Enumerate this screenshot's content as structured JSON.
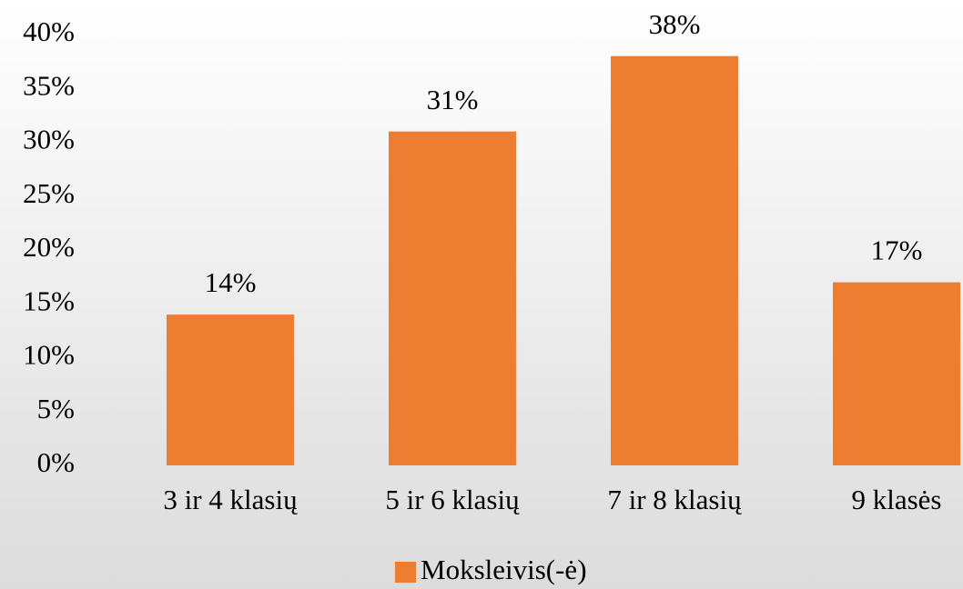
{
  "chart_data": {
    "type": "bar",
    "categories": [
      "3 ir 4 klasių",
      "5 ir 6 klasių",
      "7 ir 8 klasių",
      "9 klasės"
    ],
    "series": [
      {
        "name": "Moksleivis(-ė)",
        "color": "#ed7d31",
        "values": [
          14,
          31,
          38,
          17
        ],
        "value_labels": [
          "14%",
          "31%",
          "38%",
          "17%"
        ]
      }
    ],
    "ylim": [
      0,
      40
    ],
    "yticks": [
      {
        "value": 0,
        "label": "0%"
      },
      {
        "value": 5,
        "label": "5%"
      },
      {
        "value": 10,
        "label": "10%"
      },
      {
        "value": 15,
        "label": "15%"
      },
      {
        "value": 20,
        "label": "20%"
      },
      {
        "value": 25,
        "label": "25%"
      },
      {
        "value": 30,
        "label": "30%"
      },
      {
        "value": 35,
        "label": "35%"
      },
      {
        "value": 40,
        "label": "40%"
      }
    ],
    "grid": false,
    "legend": "bottom"
  }
}
